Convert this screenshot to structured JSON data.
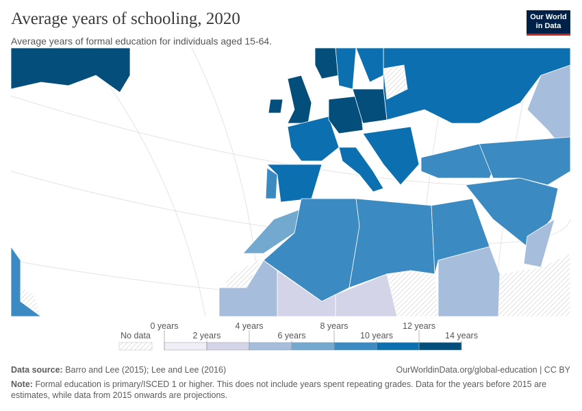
{
  "header": {
    "title": "Average years of schooling, 2020",
    "subtitle": "Average years of formal education for individuals aged 15-64.",
    "logo": [
      "Our World",
      "in Data"
    ]
  },
  "legend": {
    "no_data": "No data",
    "ticks": [
      "0 years",
      "2 years",
      "4 years",
      "6 years",
      "8 years",
      "10 years",
      "12 years",
      "14 years"
    ],
    "colors": [
      "#f0eef6",
      "#d4d4e8",
      "#a6bddb",
      "#74a9cf",
      "#3b8bc2",
      "#0b6fb0",
      "#034e7b"
    ]
  },
  "footer": {
    "source_label": "Data source:",
    "source": "Barro and Lee (2015); Lee and Lee (2016)",
    "url": "OurWorldinData.org/global-education | CC BY",
    "note_label": "Note:",
    "note": "Formal education is primary/ISCED 1 or higher. This does not include years spent repeating grades. Data for the years before 2015 are estimates, while data from 2015 onwards are projections."
  }
}
